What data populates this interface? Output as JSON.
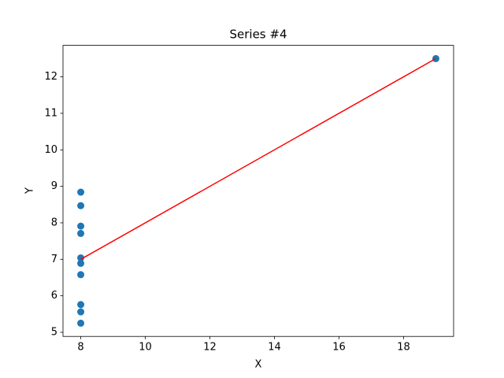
{
  "chart_data": {
    "type": "scatter",
    "title": "Series #4",
    "x_label": "X",
    "y_label": "Y",
    "series": [
      {
        "type": "scatter",
        "color": "#1f77b4",
        "x": [
          8,
          8,
          8,
          8,
          8,
          8,
          8,
          19,
          8,
          8,
          8
        ],
        "values": [
          6.58,
          5.76,
          7.71,
          8.84,
          8.47,
          7.04,
          5.25,
          12.5,
          5.56,
          7.91,
          6.89
        ]
      },
      {
        "type": "line",
        "color": "#ff0000",
        "x": [
          8,
          19
        ],
        "values": [
          7.0,
          12.5
        ]
      }
    ],
    "xlim": [
      7.45,
      19.55
    ],
    "xticks": [
      8,
      10,
      12,
      14,
      16,
      18
    ],
    "ylim": [
      4.8875,
      12.8625
    ],
    "yticks": [
      5,
      6,
      7,
      8,
      9,
      10,
      11,
      12
    ]
  }
}
